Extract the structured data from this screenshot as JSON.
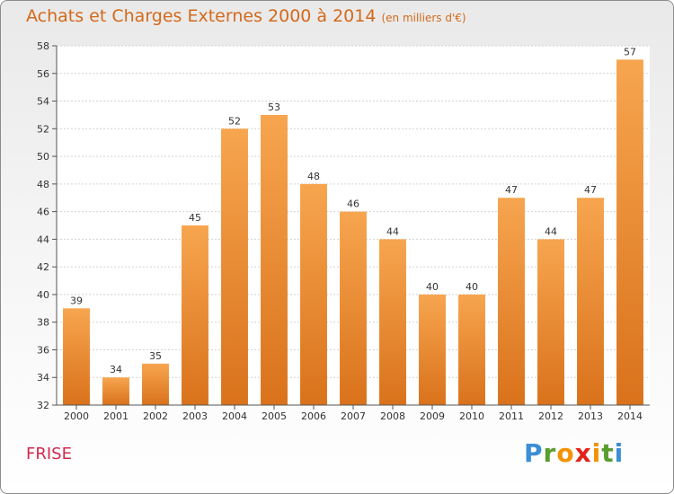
{
  "header": {
    "title": "Achats et Charges Externes 2000 à 2014",
    "subtitle": "(en milliers d'€)"
  },
  "footer": {
    "place": "FRISE",
    "logo_text": "Proxiti",
    "logo_letters": [
      "P",
      "r",
      "o",
      "x",
      "i",
      "t",
      "i"
    ],
    "logo_colors": [
      "#3a8fd6",
      "#5a9e2f",
      "#f39200",
      "#e2231a",
      "#f39200",
      "#5a9e2f",
      "#3a8fd6"
    ]
  },
  "chart_data": {
    "type": "bar",
    "title": "Achats et Charges Externes 2000 à 2014",
    "subtitle": "(en milliers d'€)",
    "xlabel": "",
    "ylabel": "",
    "categories": [
      "2000",
      "2001",
      "2002",
      "2003",
      "2004",
      "2005",
      "2006",
      "2007",
      "2008",
      "2009",
      "2010",
      "2011",
      "2012",
      "2013",
      "2014"
    ],
    "values": [
      39,
      34,
      35,
      45,
      52,
      53,
      48,
      46,
      44,
      40,
      40,
      47,
      44,
      47,
      57
    ],
    "ylim": [
      32,
      58
    ],
    "yticks": [
      32,
      34,
      36,
      38,
      40,
      42,
      44,
      46,
      48,
      50,
      52,
      54,
      56,
      58
    ],
    "grid": true,
    "bar_color_top": "#f7a54f",
    "bar_color_bottom": "#d9721b"
  }
}
